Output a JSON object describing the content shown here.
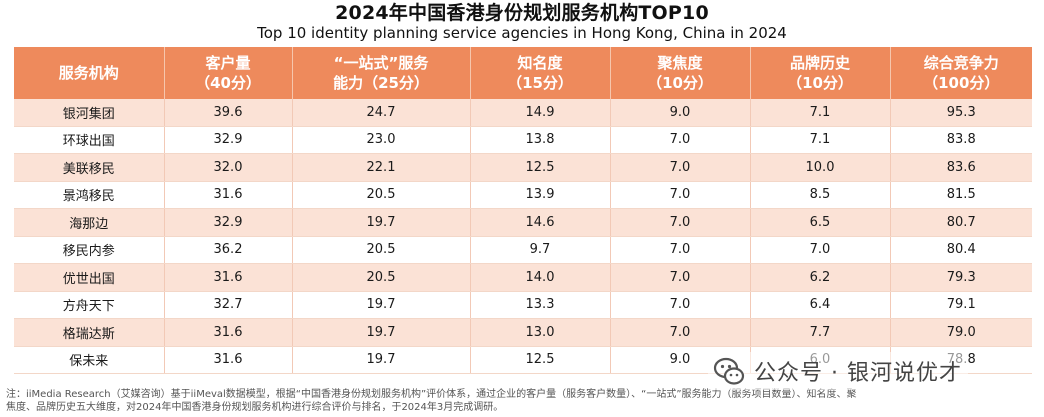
{
  "title": {
    "cn": "2024年中国香港身份规划服务机构TOP10",
    "en": "Top 10 identity planning service agencies in Hong Kong, China in 2024"
  },
  "table": {
    "headers": [
      {
        "line1": "服务机构",
        "line2": ""
      },
      {
        "line1": "客户量",
        "line2": "（40分）"
      },
      {
        "line1": "“一站式”服务",
        "line2": "能力（25分）"
      },
      {
        "line1": "知名度",
        "line2": "（15分）"
      },
      {
        "line1": "聚焦度",
        "line2": "（10分）"
      },
      {
        "line1": "品牌历史",
        "line2": "（10分）"
      },
      {
        "line1": "综合竞争力",
        "line2": "（100分）"
      }
    ],
    "rows": [
      [
        "银河集团",
        "39.6",
        "24.7",
        "14.9",
        "9.0",
        "7.1",
        "95.3"
      ],
      [
        "环球出国",
        "32.9",
        "23.0",
        "13.8",
        "7.0",
        "7.1",
        "83.8"
      ],
      [
        "美联移民",
        "32.0",
        "22.1",
        "12.5",
        "7.0",
        "10.0",
        "83.6"
      ],
      [
        "景鸿移民",
        "31.6",
        "20.5",
        "13.9",
        "7.0",
        "8.5",
        "81.5"
      ],
      [
        "海那边",
        "32.9",
        "19.7",
        "14.6",
        "7.0",
        "6.5",
        "80.7"
      ],
      [
        "移民内参",
        "36.2",
        "20.5",
        "9.7",
        "7.0",
        "7.0",
        "80.4"
      ],
      [
        "优世出国",
        "31.6",
        "20.5",
        "14.0",
        "7.0",
        "6.2",
        "79.3"
      ],
      [
        "方舟天下",
        "32.7",
        "19.7",
        "13.3",
        "7.0",
        "6.4",
        "79.1"
      ],
      [
        "格瑞达斯",
        "31.6",
        "19.7",
        "13.0",
        "7.0",
        "7.7",
        "79.0"
      ],
      [
        "保未来",
        "31.6",
        "19.7",
        "12.5",
        "9.0",
        "6.0",
        "78.8"
      ]
    ]
  },
  "footnote": {
    "line1": "注：iiMedia Research（艾媒咨询）基于iiMeval数据模型，根据“中国香港身份规划服务机构”评价体系，通过企业的客户量（服务客户数量）、“一站式”服务能力（服务项目数量）、知名度、聚",
    "line2": "焦度、品牌历史五大维度，对2024年中国香港身份规划服务机构进行综合评价与排名，于2024年3月完成调研。"
  },
  "watermark": {
    "text": "公众号 · 银河说优才",
    "icon": "wechat-icon"
  },
  "colors": {
    "header_bg": "#ee8a5c",
    "row_alt_bg": "#fbe2d6"
  }
}
